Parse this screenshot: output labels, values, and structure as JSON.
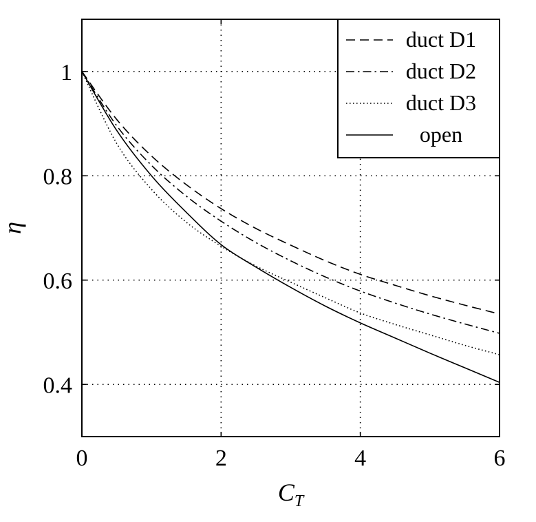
{
  "chart_data": {
    "type": "line",
    "title": "",
    "xlabel": "C",
    "xlabel_sub": "T",
    "ylabel": "η",
    "xlim": [
      0,
      6
    ],
    "ylim": [
      0.3,
      1.1
    ],
    "xticks": [
      0,
      2,
      4,
      6
    ],
    "yticks": [
      0.4,
      0.6,
      0.8,
      1
    ],
    "xtick_labels": [
      "0",
      "2",
      "4",
      "6"
    ],
    "ytick_labels": [
      "0.4",
      "0.6",
      "0.8",
      "1"
    ],
    "grid": true,
    "legend_position": "top-right",
    "x": [
      0,
      0.5,
      1,
      1.5,
      2,
      2.5,
      3,
      3.5,
      4,
      4.5,
      5,
      5.5,
      6
    ],
    "series": [
      {
        "name": "duct D1",
        "style": "dashed",
        "values": [
          1.0,
          0.908,
          0.838,
          0.783,
          0.737,
          0.699,
          0.667,
          0.637,
          0.611,
          0.59,
          0.57,
          0.552,
          0.535
        ]
      },
      {
        "name": "duct D2",
        "style": "dashdot",
        "values": [
          1.0,
          0.896,
          0.82,
          0.761,
          0.713,
          0.672,
          0.637,
          0.606,
          0.579,
          0.556,
          0.535,
          0.516,
          0.498
        ]
      },
      {
        "name": "duct D3",
        "style": "dotted",
        "values": [
          1.0,
          0.862,
          0.774,
          0.711,
          0.665,
          0.627,
          0.596,
          0.566,
          0.537,
          0.515,
          0.495,
          0.475,
          0.457
        ]
      },
      {
        "name": "open",
        "style": "solid",
        "values": [
          1.0,
          0.887,
          0.8,
          0.73,
          0.668,
          0.625,
          0.586,
          0.55,
          0.518,
          0.489,
          0.46,
          0.432,
          0.404
        ]
      }
    ]
  }
}
